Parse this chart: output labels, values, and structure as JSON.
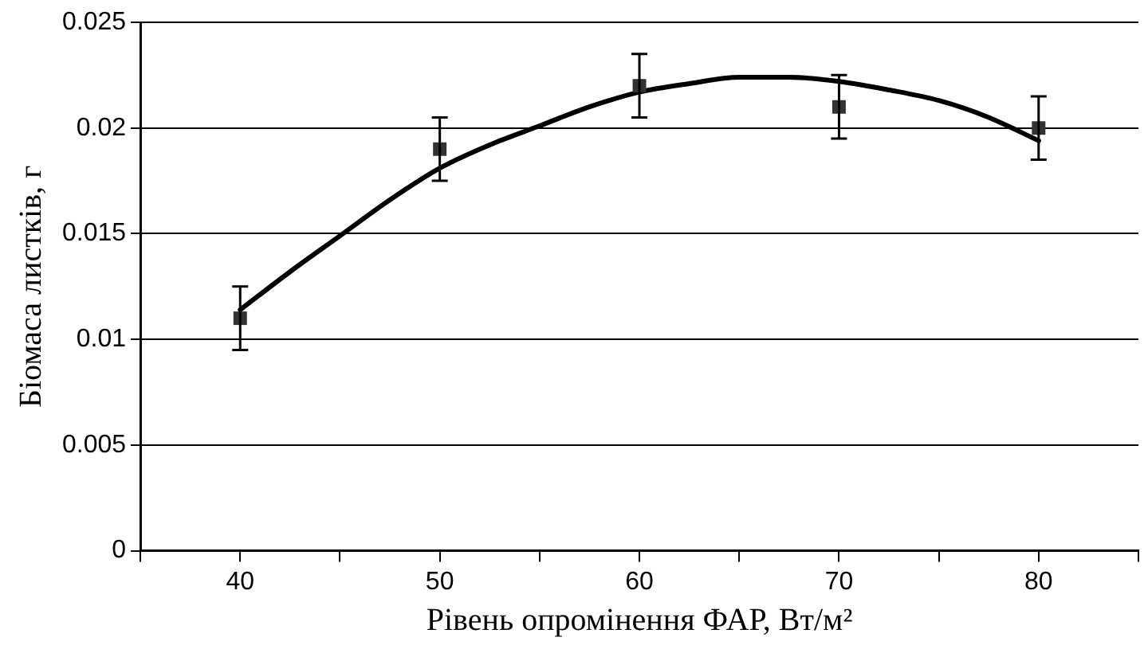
{
  "chart_data": {
    "type": "scatter",
    "xlabel": "Рівень опромінення ФАР, Вт/м²",
    "ylabel": "Біомаса листків, г",
    "xlim": [
      35,
      85
    ],
    "xticks": [
      {
        "value": 35,
        "label": null
      },
      40,
      {
        "value": 45,
        "label": null
      },
      50,
      {
        "value": 55,
        "label": null
      },
      60,
      {
        "value": 65,
        "label": null
      },
      70,
      {
        "value": 75,
        "label": null
      },
      80,
      {
        "value": 85,
        "label": null
      }
    ],
    "ylim": [
      0,
      0.025
    ],
    "yticks": [
      0,
      0.005,
      0.01,
      0.015,
      0.02,
      0.025
    ],
    "grid": "y",
    "legend": false,
    "series": [
      {
        "type": "scatter",
        "color": "#333333",
        "marker": "square",
        "x": [
          40,
          50,
          60,
          70,
          80
        ],
        "values": [
          0.011,
          0.019,
          0.022,
          0.021,
          0.02
        ],
        "errors": [
          0.0015,
          0.0015,
          0.0015,
          0.0015,
          0.0015
        ]
      },
      {
        "type": "line",
        "color": "#000000",
        "marker": "none",
        "line_style": "solid",
        "x": [
          40,
          42.5,
          45,
          47.5,
          50,
          52.5,
          55,
          57.5,
          60,
          62.5,
          65,
          67.5,
          70,
          72.5,
          75,
          77.5,
          80
        ],
        "values": [
          0.0114,
          0.0132,
          0.0149,
          0.0166,
          0.0181,
          0.0192,
          0.0201,
          0.021,
          0.0217,
          0.0221,
          0.0224,
          0.0224,
          0.0222,
          0.0218,
          0.0213,
          0.0205,
          0.0194
        ]
      }
    ]
  }
}
